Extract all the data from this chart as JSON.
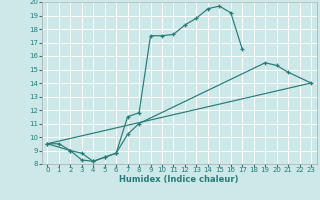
{
  "xlabel": "Humidex (Indice chaleur)",
  "background_color": "#cce8e8",
  "grid_color": "#ffffff",
  "line_color": "#2a7a7a",
  "xlim": [
    -0.5,
    23.5
  ],
  "ylim": [
    8,
    20
  ],
  "xticks": [
    0,
    1,
    2,
    3,
    4,
    5,
    6,
    7,
    8,
    9,
    10,
    11,
    12,
    13,
    14,
    15,
    16,
    17,
    18,
    19,
    20,
    21,
    22,
    23
  ],
  "yticks": [
    8,
    9,
    10,
    11,
    12,
    13,
    14,
    15,
    16,
    17,
    18,
    19,
    20
  ],
  "line1_x": [
    0,
    1,
    2,
    3,
    4,
    5,
    6,
    7,
    8,
    9,
    10,
    11,
    12,
    13,
    14,
    15,
    16,
    17
  ],
  "line1_y": [
    9.5,
    9.5,
    9.0,
    8.3,
    8.2,
    8.5,
    8.8,
    11.5,
    11.8,
    17.5,
    17.5,
    17.6,
    18.3,
    18.8,
    19.5,
    19.7,
    19.2,
    16.5
  ],
  "line2_x": [
    0,
    2,
    3,
    4,
    5,
    6,
    7,
    8,
    19,
    20,
    21,
    23
  ],
  "line2_y": [
    9.5,
    9.0,
    8.8,
    8.2,
    8.5,
    8.8,
    10.2,
    11.0,
    15.5,
    15.3,
    14.8,
    14.0
  ],
  "line3_x": [
    0,
    23
  ],
  "line3_y": [
    9.5,
    14.0
  ]
}
